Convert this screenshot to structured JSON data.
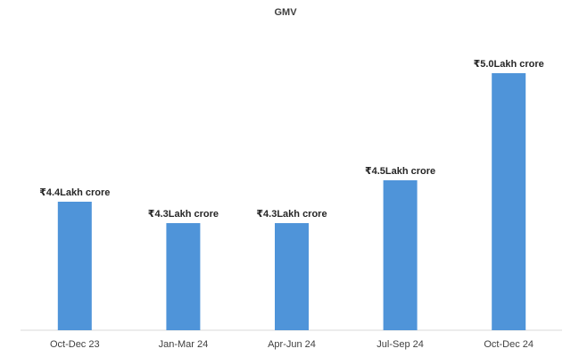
{
  "chart_data": {
    "type": "bar",
    "title": "GMV",
    "categories": [
      "Oct-Dec 23",
      "Jan-Mar 24",
      "Apr-Jun 24",
      "Jul-Sep 24",
      "Oct-Dec 24"
    ],
    "values": [
      4.4,
      4.3,
      4.3,
      4.5,
      5.0
    ],
    "value_labels": [
      "₹4.4Lakh crore",
      "₹4.3Lakh crore",
      "₹4.3Lakh crore",
      "₹4.5Lakh crore",
      "₹5.0Lakh crore"
    ],
    "color": "#4f94d9",
    "ylim": [
      3.8,
      5.2
    ]
  }
}
